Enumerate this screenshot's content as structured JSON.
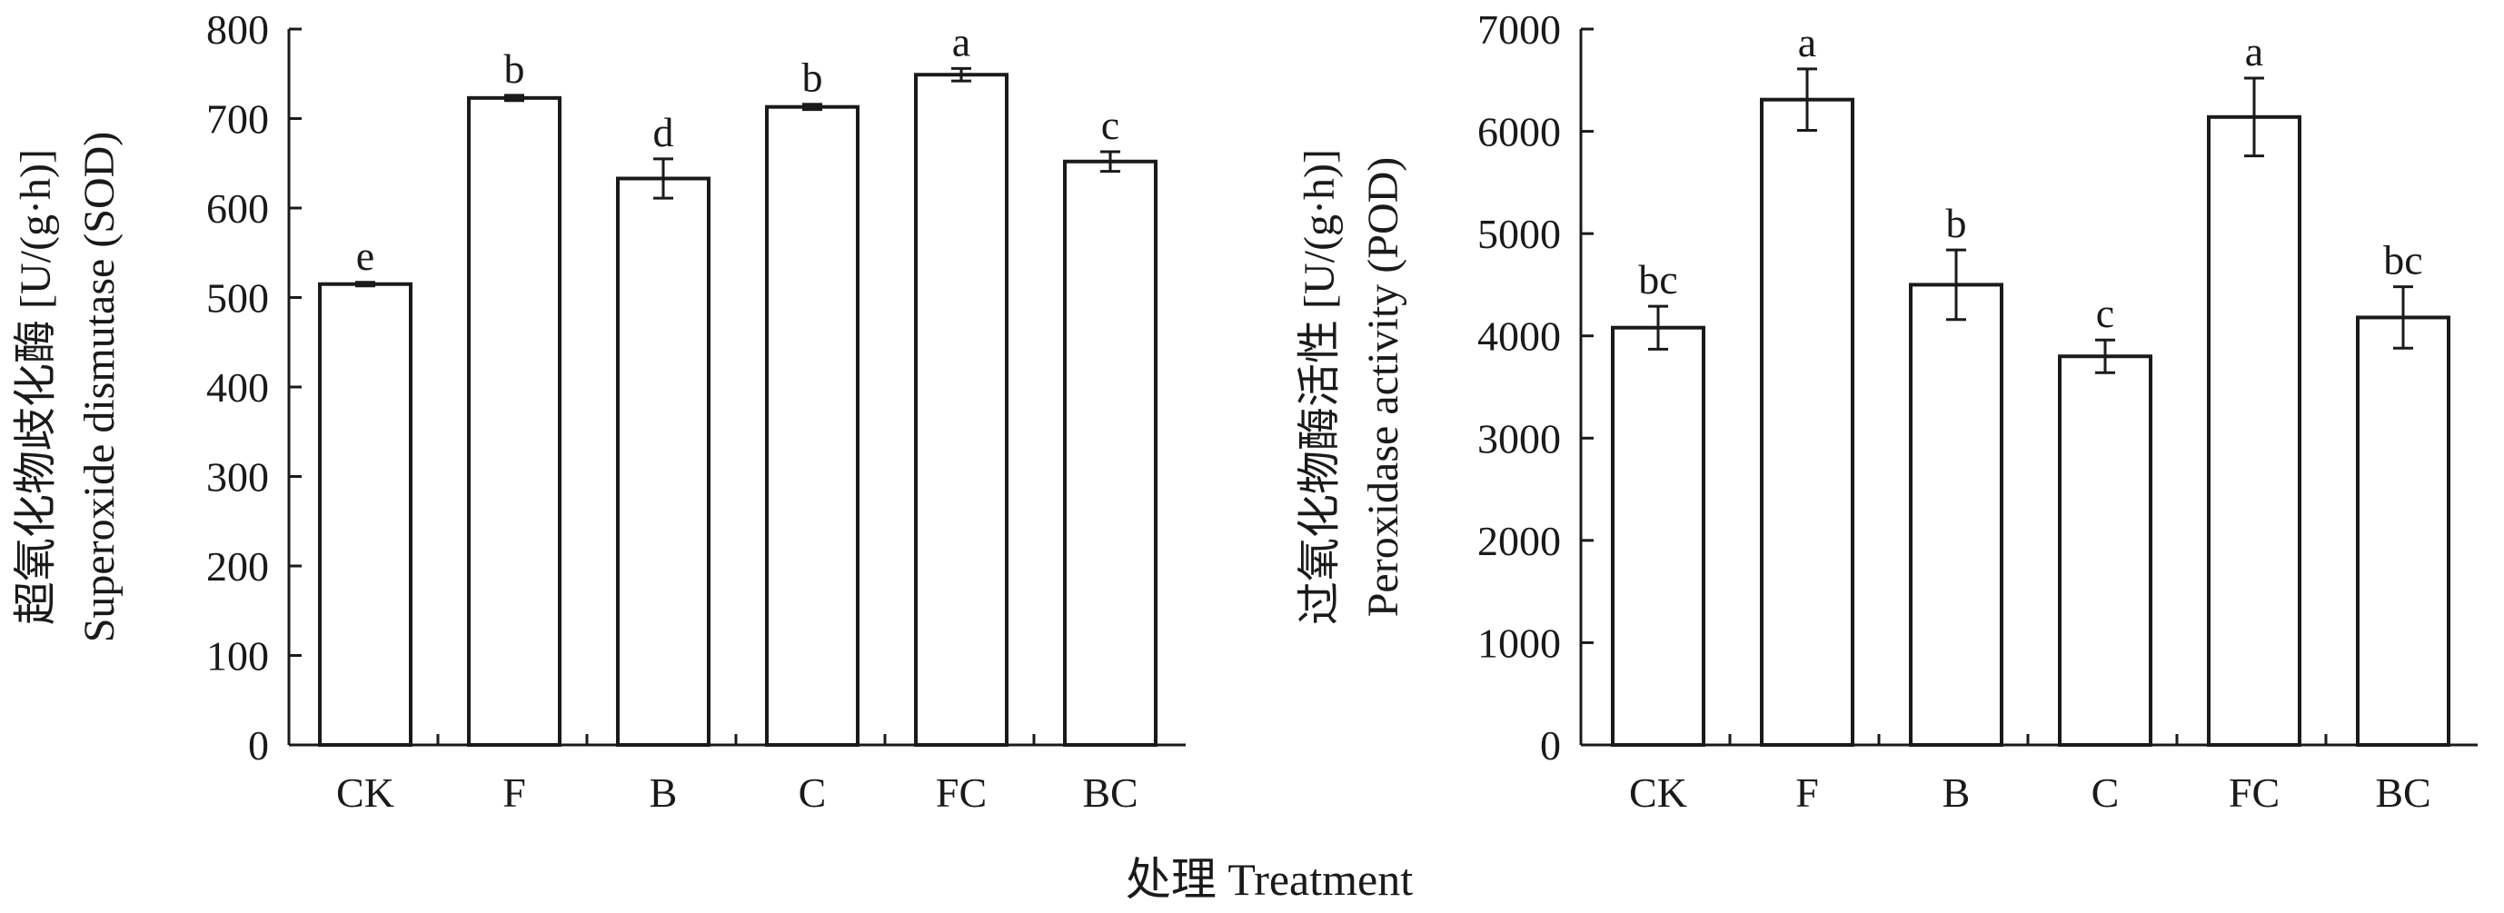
{
  "figure": {
    "xlabel": "处理 Treatment"
  },
  "chart_data": [
    {
      "type": "bar",
      "ylabel_cn": "超氧化物歧化酶 [U/(g·h)]",
      "ylabel_en": "Superoxide dismutase (SOD)",
      "ylim": [
        0,
        800
      ],
      "yticks": [
        0,
        100,
        200,
        300,
        400,
        500,
        600,
        700,
        800
      ],
      "categories": [
        "CK",
        "F",
        "B",
        "C",
        "FC",
        "BC"
      ],
      "values": [
        515,
        723,
        633,
        713,
        749,
        652
      ],
      "errors": [
        2,
        3,
        22,
        3,
        7,
        11
      ],
      "letters": [
        "e",
        "b",
        "d",
        "b",
        "a",
        "c"
      ]
    },
    {
      "type": "bar",
      "ylabel_cn": "过氧化物酶活性 [U/(g·h)]",
      "ylabel_en": "Peroxidase activity (POD)",
      "ylim": [
        0,
        7000
      ],
      "yticks": [
        0,
        1000,
        2000,
        3000,
        4000,
        5000,
        6000,
        7000
      ],
      "categories": [
        "CK",
        "F",
        "B",
        "C",
        "FC",
        "BC"
      ],
      "values": [
        4080,
        6310,
        4500,
        3800,
        6140,
        4180
      ],
      "errors": [
        210,
        300,
        340,
        160,
        380,
        300
      ],
      "letters": [
        "bc",
        "a",
        "b",
        "c",
        "a",
        "bc"
      ]
    }
  ]
}
